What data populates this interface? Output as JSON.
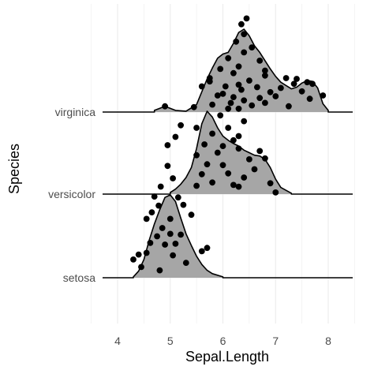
{
  "chart_data": {
    "type": "ridgeline",
    "title": "",
    "xlabel": "Sepal.Length",
    "ylabel": "Species",
    "xlim": [
      3.75,
      8.5
    ],
    "x_ticks": [
      4,
      5,
      6,
      7,
      8
    ],
    "x_tick_labels": [
      "4",
      "5",
      "6",
      "7",
      "8"
    ],
    "categories": [
      "setosa",
      "versicolor",
      "virginica"
    ],
    "grid": true,
    "fill_color": "#a6a6a6",
    "line_color": "#000000",
    "point_color": "#000000",
    "grid_color": "#ebebeb",
    "series": [
      {
        "category": "setosa",
        "density": [
          [
            4.3,
            0.01
          ],
          [
            4.4,
            0.08
          ],
          [
            4.5,
            0.22
          ],
          [
            4.6,
            0.45
          ],
          [
            4.7,
            0.65
          ],
          [
            4.8,
            0.82
          ],
          [
            4.9,
            0.97
          ],
          [
            5.0,
            1.0
          ],
          [
            5.1,
            0.92
          ],
          [
            5.2,
            0.72
          ],
          [
            5.3,
            0.53
          ],
          [
            5.4,
            0.39
          ],
          [
            5.5,
            0.26
          ],
          [
            5.6,
            0.16
          ],
          [
            5.7,
            0.09
          ],
          [
            5.8,
            0.05
          ],
          [
            6.0,
            0.01
          ]
        ],
        "points": [
          [
            4.45,
            0.13
          ],
          [
            4.3,
            0.22
          ],
          [
            4.8,
            0.09
          ],
          [
            5.3,
            0.18
          ],
          [
            5.05,
            0.27
          ],
          [
            4.4,
            0.28
          ],
          [
            4.55,
            0.3
          ],
          [
            5.6,
            0.32
          ],
          [
            4.62,
            0.42
          ],
          [
            4.9,
            0.4
          ],
          [
            5.1,
            0.41
          ],
          [
            5.7,
            0.36
          ],
          [
            4.75,
            0.5
          ],
          [
            5.0,
            0.53
          ],
          [
            5.2,
            0.52
          ],
          [
            4.85,
            0.6
          ],
          [
            4.55,
            0.71
          ],
          [
            5.0,
            0.71
          ],
          [
            4.65,
            0.79
          ],
          [
            5.4,
            0.76
          ],
          [
            4.78,
            0.87
          ],
          [
            5.25,
            0.88
          ],
          [
            4.7,
            0.98
          ],
          [
            5.15,
            0.97
          ],
          [
            4.82,
            1.1
          ],
          [
            5.05,
            1.2
          ],
          [
            4.95,
            1.35
          ],
          [
            4.95,
            1.6
          ],
          [
            5.1,
            1.7
          ],
          [
            5.2,
            1.84
          ]
        ]
      },
      {
        "category": "versicolor",
        "density": [
          [
            5.0,
            0.02
          ],
          [
            5.1,
            0.06
          ],
          [
            5.2,
            0.12
          ],
          [
            5.3,
            0.2
          ],
          [
            5.4,
            0.32
          ],
          [
            5.5,
            0.55
          ],
          [
            5.6,
            0.85
          ],
          [
            5.7,
            1.0
          ],
          [
            5.8,
            0.93
          ],
          [
            5.9,
            0.8
          ],
          [
            6.0,
            0.7
          ],
          [
            6.1,
            0.65
          ],
          [
            6.2,
            0.61
          ],
          [
            6.3,
            0.58
          ],
          [
            6.4,
            0.53
          ],
          [
            6.5,
            0.5
          ],
          [
            6.6,
            0.47
          ],
          [
            6.7,
            0.46
          ],
          [
            6.8,
            0.42
          ],
          [
            6.9,
            0.32
          ],
          [
            7.0,
            0.18
          ],
          [
            7.1,
            0.08
          ],
          [
            7.3,
            0.01
          ]
        ],
        "points": [
          [
            5.5,
            0.1
          ],
          [
            6.3,
            0.09
          ],
          [
            7.0,
            0.02
          ],
          [
            5.8,
            0.14
          ],
          [
            6.2,
            0.11
          ],
          [
            6.9,
            0.13
          ],
          [
            5.6,
            0.24
          ],
          [
            6.1,
            0.25
          ],
          [
            6.6,
            0.3
          ],
          [
            6.4,
            0.2
          ],
          [
            5.7,
            0.36
          ],
          [
            6.0,
            0.35
          ],
          [
            6.5,
            0.42
          ],
          [
            5.5,
            0.47
          ],
          [
            5.9,
            0.5
          ],
          [
            6.3,
            0.55
          ],
          [
            6.8,
            0.43
          ],
          [
            6.7,
            0.52
          ],
          [
            5.65,
            0.6
          ],
          [
            6.2,
            0.65
          ],
          [
            5.8,
            0.73
          ],
          [
            6.1,
            0.8
          ],
          [
            5.95,
            0.95
          ],
          [
            6.4,
            0.88
          ],
          [
            5.45,
            1.05
          ],
          [
            6.15,
            1.1
          ],
          [
            6.3,
            1.32
          ],
          [
            5.6,
            1.3
          ],
          [
            5.75,
            1.4
          ],
          [
            6.3,
            0.7
          ],
          [
            5.5,
            0.8
          ],
          [
            6.0,
            0.58
          ]
        ]
      },
      {
        "category": "virginica",
        "density": [
          [
            4.7,
            0.02
          ],
          [
            4.9,
            0.07
          ],
          [
            5.1,
            0.02
          ],
          [
            5.3,
            0.01
          ],
          [
            5.5,
            0.09
          ],
          [
            5.7,
            0.4
          ],
          [
            5.8,
            0.53
          ],
          [
            5.9,
            0.65
          ],
          [
            6.0,
            0.7
          ],
          [
            6.1,
            0.72
          ],
          [
            6.2,
            0.83
          ],
          [
            6.3,
            0.96
          ],
          [
            6.4,
            1.0
          ],
          [
            6.5,
            0.92
          ],
          [
            6.6,
            0.8
          ],
          [
            6.7,
            0.72
          ],
          [
            6.8,
            0.62
          ],
          [
            6.9,
            0.52
          ],
          [
            7.0,
            0.43
          ],
          [
            7.1,
            0.36
          ],
          [
            7.2,
            0.32
          ],
          [
            7.3,
            0.28
          ],
          [
            7.4,
            0.3
          ],
          [
            7.5,
            0.35
          ],
          [
            7.6,
            0.38
          ],
          [
            7.7,
            0.37
          ],
          [
            7.8,
            0.29
          ],
          [
            7.9,
            0.1
          ],
          [
            8.0,
            0.02
          ]
        ],
        "points": [
          [
            4.9,
            0.07
          ],
          [
            6.1,
            0.04
          ],
          [
            6.3,
            0.04
          ],
          [
            5.8,
            0.09
          ],
          [
            6.55,
            0.08
          ],
          [
            7.25,
            0.07
          ],
          [
            6.8,
            0.11
          ],
          [
            6.4,
            0.14
          ],
          [
            6.7,
            0.17
          ],
          [
            7.65,
            0.16
          ],
          [
            7.0,
            0.19
          ],
          [
            6.2,
            0.18
          ],
          [
            5.9,
            0.2
          ],
          [
            6.0,
            0.22
          ],
          [
            6.9,
            0.24
          ],
          [
            7.5,
            0.25
          ],
          [
            6.35,
            0.27
          ],
          [
            6.65,
            0.3
          ],
          [
            7.1,
            0.29
          ],
          [
            6.05,
            0.31
          ],
          [
            7.7,
            0.34
          ],
          [
            7.9,
            0.2
          ],
          [
            5.75,
            0.37
          ],
          [
            6.5,
            0.38
          ],
          [
            7.2,
            0.41
          ],
          [
            6.8,
            0.44
          ],
          [
            6.2,
            0.47
          ],
          [
            7.4,
            0.4
          ],
          [
            7.6,
            0.36
          ],
          [
            6.3,
            0.55
          ],
          [
            5.95,
            0.52
          ],
          [
            6.7,
            0.62
          ],
          [
            6.1,
            0.65
          ],
          [
            6.4,
            0.72
          ],
          [
            6.55,
            0.78
          ],
          [
            6.25,
            0.85
          ],
          [
            6.4,
            0.94
          ],
          [
            6.35,
            1.06
          ],
          [
            6.45,
            1.13
          ],
          [
            6.8,
            0.5
          ],
          [
            7.35,
            0.34
          ]
        ]
      }
    ]
  }
}
